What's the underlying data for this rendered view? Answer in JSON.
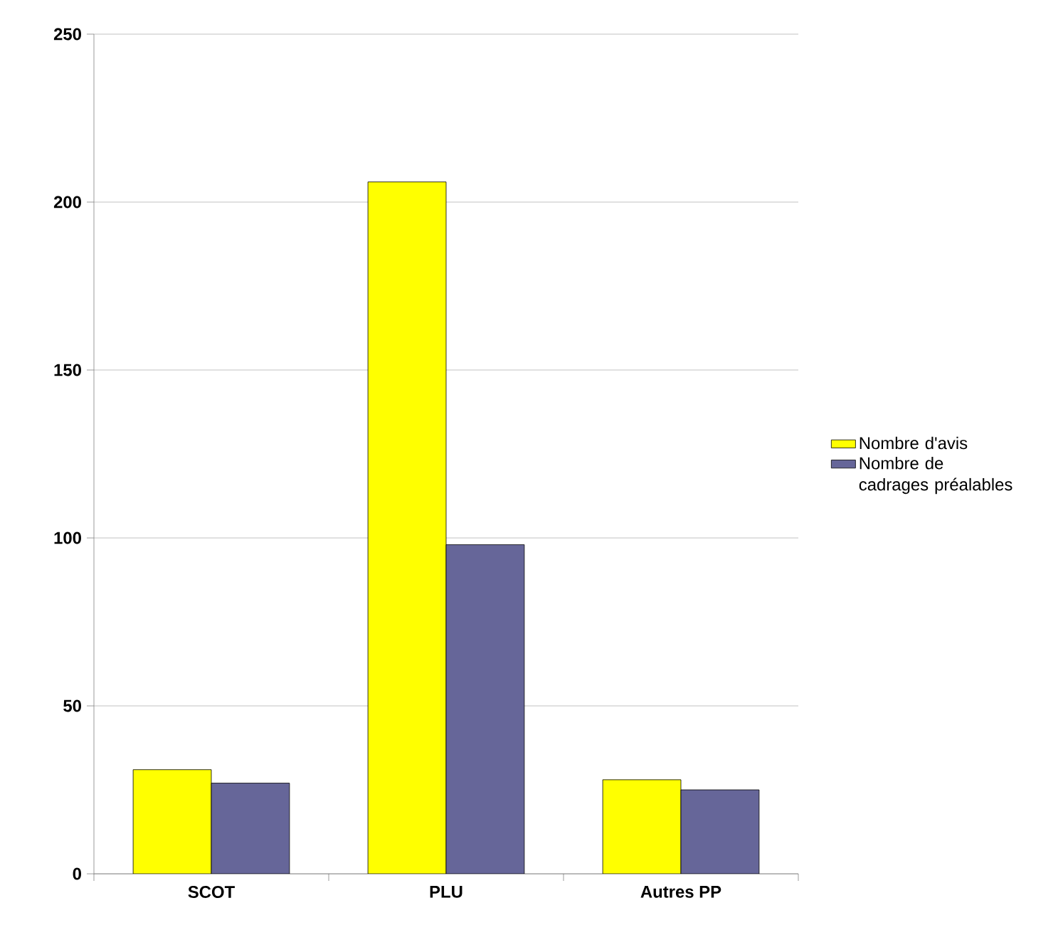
{
  "chart_data": {
    "type": "bar",
    "categories": [
      "SCOT",
      "PLU",
      "Autres PP"
    ],
    "series": [
      {
        "name": "Nombre d'avis",
        "color": "#ffff00",
        "values": [
          31,
          206,
          28
        ]
      },
      {
        "name": "Nombre de cadrages préalables",
        "color": "#666699",
        "values": [
          27,
          98,
          25
        ]
      }
    ],
    "ylim": [
      0,
      250
    ],
    "yticks": [
      0,
      50,
      100,
      150,
      200,
      250
    ],
    "grid": "y",
    "legend": "right"
  }
}
